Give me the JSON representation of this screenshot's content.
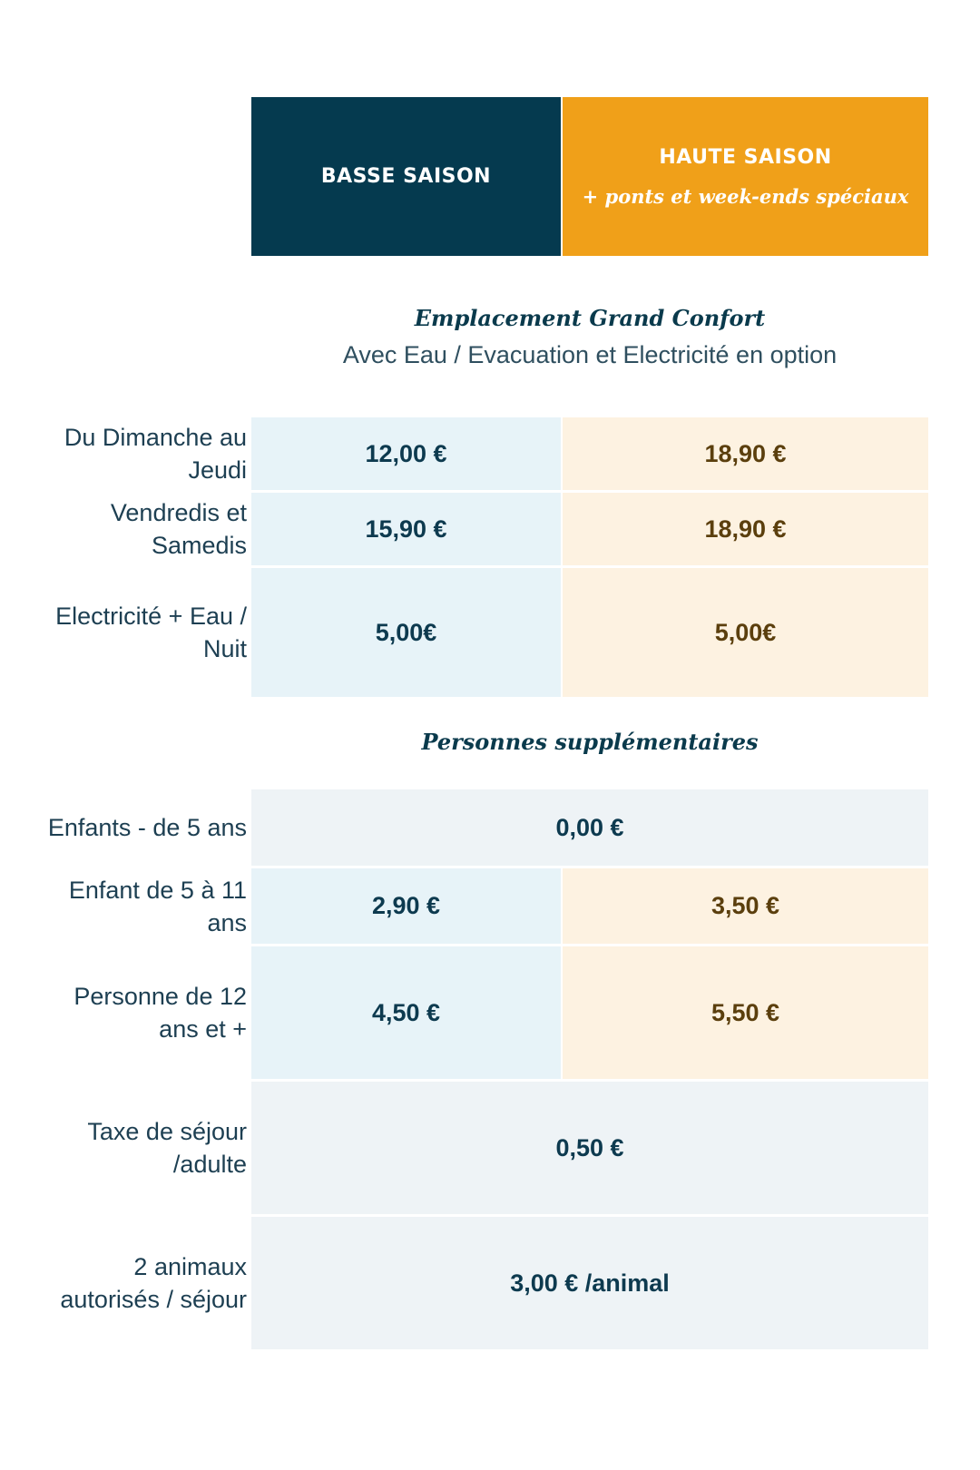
{
  "header": {
    "basse_title": "BASSE SAISON",
    "haute_title": "HAUTE SAISON",
    "haute_sub": "+ ponts et week-ends spéciaux",
    "colors": {
      "basse": "#053a4f",
      "haute": "#f0a019"
    }
  },
  "section1": {
    "title": "Emplacement Grand Confort",
    "subtitle": "Avec Eau / Evacuation et Electricité en option",
    "rows": [
      {
        "label": "Du Dimanche au Jeudi",
        "basse": "12,00 €",
        "haute": "18,90 €"
      },
      {
        "label": "Vendredis et Samedis",
        "basse": "15,90 €",
        "haute": "18,90 €"
      },
      {
        "label": "Electricité + Eau / Nuit",
        "basse": "5,00€",
        "haute": "5,00€"
      }
    ]
  },
  "section2": {
    "title": "Personnes supplémentaires",
    "rows": [
      {
        "label": "Enfants - de 5 ans",
        "value": "0,00 €"
      },
      {
        "label": "Enfant de 5 à 11 ans",
        "basse": "2,90 €",
        "haute": "3,50 €"
      },
      {
        "label": "Personne de 12 ans et +",
        "basse": "4,50 €",
        "haute": "5,50 €"
      },
      {
        "label": "Taxe de séjour /adulte",
        "value": "0,50 €"
      },
      {
        "label": "2 animaux autorisés / séjour",
        "value": "3,00 € /animal"
      }
    ]
  }
}
